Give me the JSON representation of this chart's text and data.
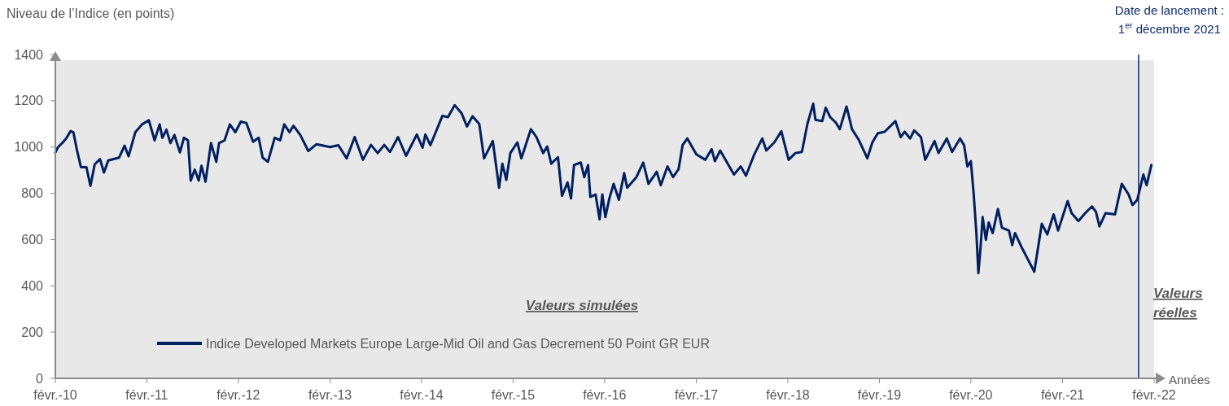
{
  "chart_data": {
    "type": "line",
    "ylabel": "Niveau de l’Indice (en points)",
    "xlabel": "Années",
    "xlim": [
      "2010-02-01",
      "2022-02-01"
    ],
    "xticks": [
      {
        "value": "2010-02-01",
        "label": "févr.-10"
      },
      {
        "value": "2011-02-01",
        "label": "févr.-11"
      },
      {
        "value": "2012-02-01",
        "label": "févr.-12"
      },
      {
        "value": "2013-02-01",
        "label": "févr.-13"
      },
      {
        "value": "2014-02-01",
        "label": "févr.-14"
      },
      {
        "value": "2015-02-01",
        "label": "févr.-15"
      },
      {
        "value": "2016-02-01",
        "label": "févr.-16"
      },
      {
        "value": "2017-02-01",
        "label": "févr.-17"
      },
      {
        "value": "2018-02-01",
        "label": "févr.-18"
      },
      {
        "value": "2019-02-01",
        "label": "févr.-19"
      },
      {
        "value": "2020-02-01",
        "label": "févr.-20"
      },
      {
        "value": "2021-02-01",
        "label": "févr.-21"
      },
      {
        "value": "2022-02-01",
        "label": "févr.-22"
      }
    ],
    "ylim": [
      0,
      1400
    ],
    "yticks": [
      0,
      200,
      400,
      600,
      800,
      1000,
      1200,
      1400
    ],
    "grid": false,
    "legend": "bottom",
    "marker": "none",
    "line_style": "solid",
    "ref_lines": [
      {
        "axis": "x",
        "value": "2021-12-01",
        "label": "Date de lancement : 1$^{er}$ décembre 2021",
        "color": "#0b2a6b"
      }
    ],
    "annotations": [
      "Valeurs simulées",
      "Valeurs réelles"
    ],
    "series": [
      {
        "name": "Indice Developed Markets Europe Large-Mid Oil and Gas Decrement 50 Point GR EUR",
        "color": "#002060",
        "x": [
          "2010-02-01",
          "2010-02-12",
          "2010-02-28",
          "2010-03-15",
          "2010-04-03",
          "2010-04-14",
          "2010-04-28",
          "2010-05-14",
          "2010-06-05",
          "2010-06-21",
          "2010-07-08",
          "2010-07-29",
          "2010-08-14",
          "2010-08-31",
          "2010-10-13",
          "2010-11-04",
          "2010-11-20",
          "2010-12-17",
          "2011-01-13",
          "2011-02-09",
          "2011-03-04",
          "2011-03-24",
          "2011-04-04",
          "2011-04-20",
          "2011-05-06",
          "2011-05-22",
          "2011-06-13",
          "2011-06-29",
          "2011-07-15",
          "2011-07-26",
          "2011-08-11",
          "2011-08-27",
          "2011-09-07",
          "2011-09-23",
          "2011-10-15",
          "2011-11-05",
          "2011-11-16",
          "2011-12-08",
          "2011-12-29",
          "2012-01-20",
          "2012-02-11",
          "2012-03-04",
          "2012-03-31",
          "2012-04-22",
          "2012-05-08",
          "2012-05-29",
          "2012-06-25",
          "2012-07-17",
          "2012-08-02",
          "2012-08-23",
          "2012-09-08",
          "2012-10-05",
          "2012-11-06",
          "2012-12-08",
          "2013-02-01",
          "2013-03-06",
          "2013-04-08",
          "2013-05-10",
          "2013-06-12",
          "2013-07-14",
          "2013-08-10",
          "2013-09-05",
          "2013-09-28",
          "2013-10-30",
          "2013-12-01",
          "2014-01-13",
          "2014-02-05",
          "2014-02-16",
          "2014-03-08",
          "2014-03-30",
          "2014-04-25",
          "2014-05-17",
          "2014-06-13",
          "2014-07-10",
          "2014-08-01",
          "2014-08-23",
          "2014-09-19",
          "2014-10-08",
          "2014-11-12",
          "2014-12-07",
          "2014-12-20",
          "2015-01-05",
          "2015-01-21",
          "2015-02-18",
          "2015-03-06",
          "2015-04-13",
          "2015-05-05",
          "2015-06-01",
          "2015-06-17",
          "2015-07-03",
          "2015-07-30",
          "2015-08-15",
          "2015-09-06",
          "2015-09-20",
          "2015-10-02",
          "2015-10-29",
          "2015-11-12",
          "2015-11-27",
          "2015-12-06",
          "2015-12-27",
          "2016-01-12",
          "2016-01-23",
          "2016-02-04",
          "2016-02-20",
          "2016-03-08",
          "2016-03-29",
          "2016-04-19",
          "2016-05-01",
          "2016-06-07",
          "2016-07-04",
          "2016-07-25",
          "2016-08-27",
          "2016-09-12",
          "2016-10-09",
          "2016-10-31",
          "2016-11-22",
          "2016-12-08",
          "2016-12-27",
          "2017-02-01",
          "2017-03-09",
          "2017-04-03",
          "2017-04-16",
          "2017-05-07",
          "2017-07-01",
          "2017-07-28",
          "2017-08-18",
          "2017-09-20",
          "2017-10-22",
          "2017-11-07",
          "2017-12-09",
          "2018-01-06",
          "2018-02-04",
          "2018-03-03",
          "2018-03-29",
          "2018-04-20",
          "2018-05-13",
          "2018-05-22",
          "2018-06-18",
          "2018-07-02",
          "2018-07-20",
          "2018-08-11",
          "2018-08-27",
          "2018-09-23",
          "2018-10-15",
          "2018-11-11",
          "2018-12-15",
          "2019-01-04",
          "2019-01-26",
          "2019-02-22",
          "2019-04-06",
          "2019-04-27",
          "2019-05-13",
          "2019-06-04",
          "2019-06-20",
          "2019-07-17",
          "2019-08-03",
          "2019-09-09",
          "2019-09-25",
          "2019-10-28",
          "2019-11-18",
          "2019-12-20",
          "2020-01-05",
          "2020-01-18",
          "2020-02-01",
          "2020-02-12",
          "2020-02-23",
          "2020-03-02",
          "2020-03-11",
          "2020-03-19",
          "2020-04-01",
          "2020-04-12",
          "2020-04-28",
          "2020-05-19",
          "2020-06-04",
          "2020-07-02",
          "2020-07-15",
          "2020-07-26",
          "2020-08-20",
          "2020-09-16",
          "2020-10-11",
          "2020-10-30",
          "2020-11-10",
          "2020-12-02",
          "2020-12-27",
          "2021-01-14",
          "2021-02-21",
          "2021-03-09",
          "2021-04-05",
          "2021-05-02",
          "2021-05-29",
          "2021-06-14",
          "2021-06-28",
          "2021-07-22",
          "2021-08-29",
          "2021-09-25",
          "2021-10-22",
          "2021-11-07",
          "2021-11-26",
          "2021-12-20",
          "2022-01-02",
          "2022-01-21"
        ],
        "values": [
          977,
          1000,
          1017,
          1035,
          1069,
          1064,
          988,
          913,
          913,
          832,
          925,
          948,
          890,
          942,
          954,
          1006,
          960,
          1064,
          1098,
          1116,
          1029,
          1098,
          1040,
          1075,
          1017,
          1052,
          977,
          1040,
          1029,
          855,
          902,
          855,
          919,
          850,
          1017,
          936,
          1017,
          1029,
          1098,
          1064,
          1110,
          1104,
          1023,
          1040,
          954,
          936,
          1040,
          1029,
          1098,
          1064,
          1092,
          1052,
          983,
          1012,
          1000,
          1008,
          951,
          1043,
          945,
          1009,
          974,
          1009,
          979,
          1043,
          962,
          1054,
          997,
          1054,
          1008,
          1066,
          1135,
          1129,
          1181,
          1147,
          1089,
          1133,
          1100,
          951,
          1026,
          824,
          928,
          858,
          974,
          1020,
          951,
          1077,
          1043,
          974,
          1002,
          928,
          956,
          789,
          847,
          778,
          922,
          933,
          870,
          922,
          784,
          795,
          688,
          795,
          697,
          778,
          841,
          772,
          887,
          824,
          870,
          933,
          841,
          893,
          835,
          916,
          870,
          904,
          1008,
          1037,
          968,
          945,
          991,
          939,
          985,
          881,
          916,
          876,
          968,
          1037,
          985,
          1020,
          1068,
          945,
          974,
          979,
          1100,
          1187,
          1118,
          1112,
          1170,
          1129,
          1106,
          1077,
          1175,
          1077,
          1031,
          951,
          1020,
          1060,
          1066,
          1112,
          1043,
          1066,
          1037,
          1072,
          1043,
          945,
          1026,
          974,
          1037,
          979,
          1037,
          1008,
          916,
          939,
          801,
          628,
          455,
          570,
          697,
          599,
          674,
          628,
          732,
          651,
          639,
          576,
          628,
          570,
          513,
          461,
          593,
          668,
          622,
          709,
          639,
          766,
          714,
          680,
          714,
          743,
          720,
          657,
          714,
          709,
          841,
          795,
          749,
          772,
          881,
          835,
          922
        ]
      }
    ]
  }
}
